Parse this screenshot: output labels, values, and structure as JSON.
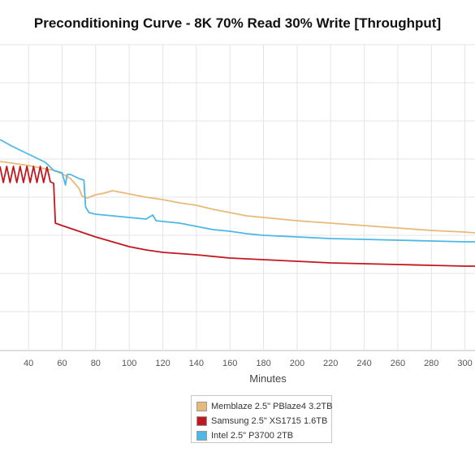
{
  "chart_data": {
    "type": "line",
    "title": "Preconditioning Curve - 8K 70% Read 30% Write [Throughput]",
    "xlabel": "Minutes",
    "ylabel": "",
    "x_ticks": [
      40,
      60,
      80,
      100,
      120,
      140,
      160,
      180,
      200,
      220,
      240,
      260,
      280,
      300
    ],
    "xlim": [
      23,
      306
    ],
    "grid": true,
    "legend_position": "bottom-center",
    "series": [
      {
        "name": "Memblaze 2.5\" PBlaze4 3.2TB",
        "color": "#e8b97a",
        "points": [
          [
            23,
            199
          ],
          [
            30,
            201
          ],
          [
            40,
            204
          ],
          [
            50,
            208
          ],
          [
            55,
            210
          ],
          [
            60,
            214
          ],
          [
            65,
            220
          ],
          [
            70,
            232
          ],
          [
            72,
            242
          ],
          [
            75,
            244
          ],
          [
            80,
            240
          ],
          [
            85,
            238
          ],
          [
            90,
            235
          ],
          [
            95,
            237
          ],
          [
            100,
            239
          ],
          [
            110,
            243
          ],
          [
            120,
            246
          ],
          [
            130,
            250
          ],
          [
            140,
            253
          ],
          [
            150,
            258
          ],
          [
            160,
            262
          ],
          [
            170,
            266
          ],
          [
            180,
            268
          ],
          [
            190,
            270
          ],
          [
            200,
            272
          ],
          [
            220,
            275
          ],
          [
            240,
            278
          ],
          [
            260,
            281
          ],
          [
            280,
            284
          ],
          [
            300,
            286
          ],
          [
            306,
            287
          ]
        ]
      },
      {
        "name": "Samsung 2.5\" XS1715 1.6TB",
        "color": "#c0181e",
        "points": [
          [
            23,
            205
          ],
          [
            25,
            225
          ],
          [
            27,
            205
          ],
          [
            29,
            225
          ],
          [
            31,
            205
          ],
          [
            33,
            225
          ],
          [
            35,
            205
          ],
          [
            37,
            225
          ],
          [
            39,
            205
          ],
          [
            41,
            225
          ],
          [
            43,
            205
          ],
          [
            45,
            225
          ],
          [
            47,
            205
          ],
          [
            49,
            225
          ],
          [
            51,
            206
          ],
          [
            53,
            224
          ],
          [
            55,
            226
          ],
          [
            56,
            275
          ],
          [
            60,
            278
          ],
          [
            70,
            285
          ],
          [
            80,
            292
          ],
          [
            90,
            298
          ],
          [
            100,
            304
          ],
          [
            110,
            308
          ],
          [
            120,
            311
          ],
          [
            140,
            314
          ],
          [
            160,
            318
          ],
          [
            180,
            320
          ],
          [
            200,
            322
          ],
          [
            220,
            324
          ],
          [
            240,
            325
          ],
          [
            260,
            326
          ],
          [
            280,
            327
          ],
          [
            300,
            328
          ],
          [
            306,
            328
          ]
        ]
      },
      {
        "name": "Intel 2.5\" P3700 2TB",
        "color": "#4db7e5",
        "points": [
          [
            23,
            172
          ],
          [
            30,
            180
          ],
          [
            40,
            190
          ],
          [
            50,
            200
          ],
          [
            55,
            210
          ],
          [
            60,
            213
          ],
          [
            62,
            228
          ],
          [
            63,
            215
          ],
          [
            65,
            215
          ],
          [
            70,
            220
          ],
          [
            73,
            222
          ],
          [
            74,
            255
          ],
          [
            76,
            262
          ],
          [
            80,
            264
          ],
          [
            90,
            266
          ],
          [
            100,
            268
          ],
          [
            110,
            270
          ],
          [
            114,
            265
          ],
          [
            116,
            272
          ],
          [
            130,
            275
          ],
          [
            140,
            279
          ],
          [
            150,
            283
          ],
          [
            160,
            285
          ],
          [
            170,
            288
          ],
          [
            180,
            290
          ],
          [
            200,
            292
          ],
          [
            220,
            294
          ],
          [
            240,
            295
          ],
          [
            260,
            296
          ],
          [
            280,
            297
          ],
          [
            300,
            298
          ],
          [
            306,
            298
          ]
        ]
      }
    ]
  },
  "legend": {
    "items": [
      {
        "label": "Memblaze 2.5\" PBlaze4 3.2TB",
        "color": "#e8b97a"
      },
      {
        "label": "Samsung 2.5\" XS1715 1.6TB",
        "color": "#c0181e"
      },
      {
        "label": "Intel 2.5\" P3700 2TB",
        "color": "#4db7e5"
      }
    ]
  }
}
